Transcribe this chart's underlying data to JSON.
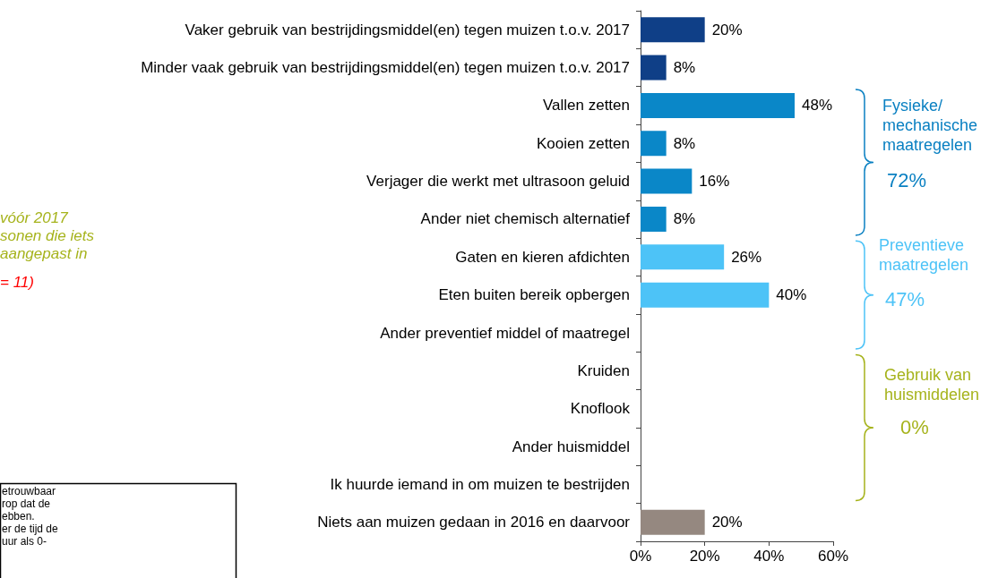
{
  "chart_data": {
    "type": "bar",
    "orientation": "horizontal",
    "categories": [
      "Vaker gebruik van bestrijdingsmiddel(en) tegen muizen t.o.v. 2017",
      "Minder vaak gebruik van bestrijdingsmiddel(en) tegen muizen t.o.v. 2017",
      "Vallen zetten",
      "Kooien zetten",
      "Verjager die werkt met ultrasoon geluid",
      "Ander niet chemisch alternatief",
      "Gaten en kieren afdichten",
      "Eten buiten bereik opbergen",
      "Ander preventief middel of maatregel",
      "Kruiden",
      "Knoflook",
      "Ander huismiddel",
      "Ik huurde iemand in om muizen te bestrijden",
      "Niets aan muizen gedaan in 2016 en daarvoor"
    ],
    "values": [
      20,
      8,
      48,
      8,
      16,
      8,
      26,
      40,
      0,
      0,
      0,
      0,
      0,
      20
    ],
    "value_labels": [
      "20%",
      "8%",
      "48%",
      "8%",
      "16%",
      "8%",
      "26%",
      "40%",
      null,
      null,
      null,
      null,
      null,
      "20%"
    ],
    "colors": [
      "#0f3f87",
      "#0f3f87",
      "#0a87c8",
      "#0a87c8",
      "#0a87c8",
      "#0a87c8",
      "#4dc3f7",
      "#4dc3f7",
      "#4dc3f7",
      "#a6b31c",
      "#a6b31c",
      "#a6b31c",
      "#a6b31c",
      "#958880"
    ],
    "xlim": [
      0,
      60
    ],
    "xticks": [
      {
        "value": 0,
        "label": "0%"
      },
      {
        "value": 20,
        "label": "20%"
      },
      {
        "value": 40,
        "label": "40%"
      },
      {
        "value": 60,
        "label": "60%"
      }
    ],
    "annotations": [
      "Fysieke/\nmechanische\nmaatregelen",
      "72%",
      "Preventieve\nmaatregelen",
      "47%",
      "Gebruik van\nhuismiddelen",
      "0%",
      "vóór 2017\nsonen die iets\naangepast in",
      "= 11)",
      "etrouwbaar\nrop dat de\nebben.\ner de tijd de\nuur als 0-"
    ]
  }
}
